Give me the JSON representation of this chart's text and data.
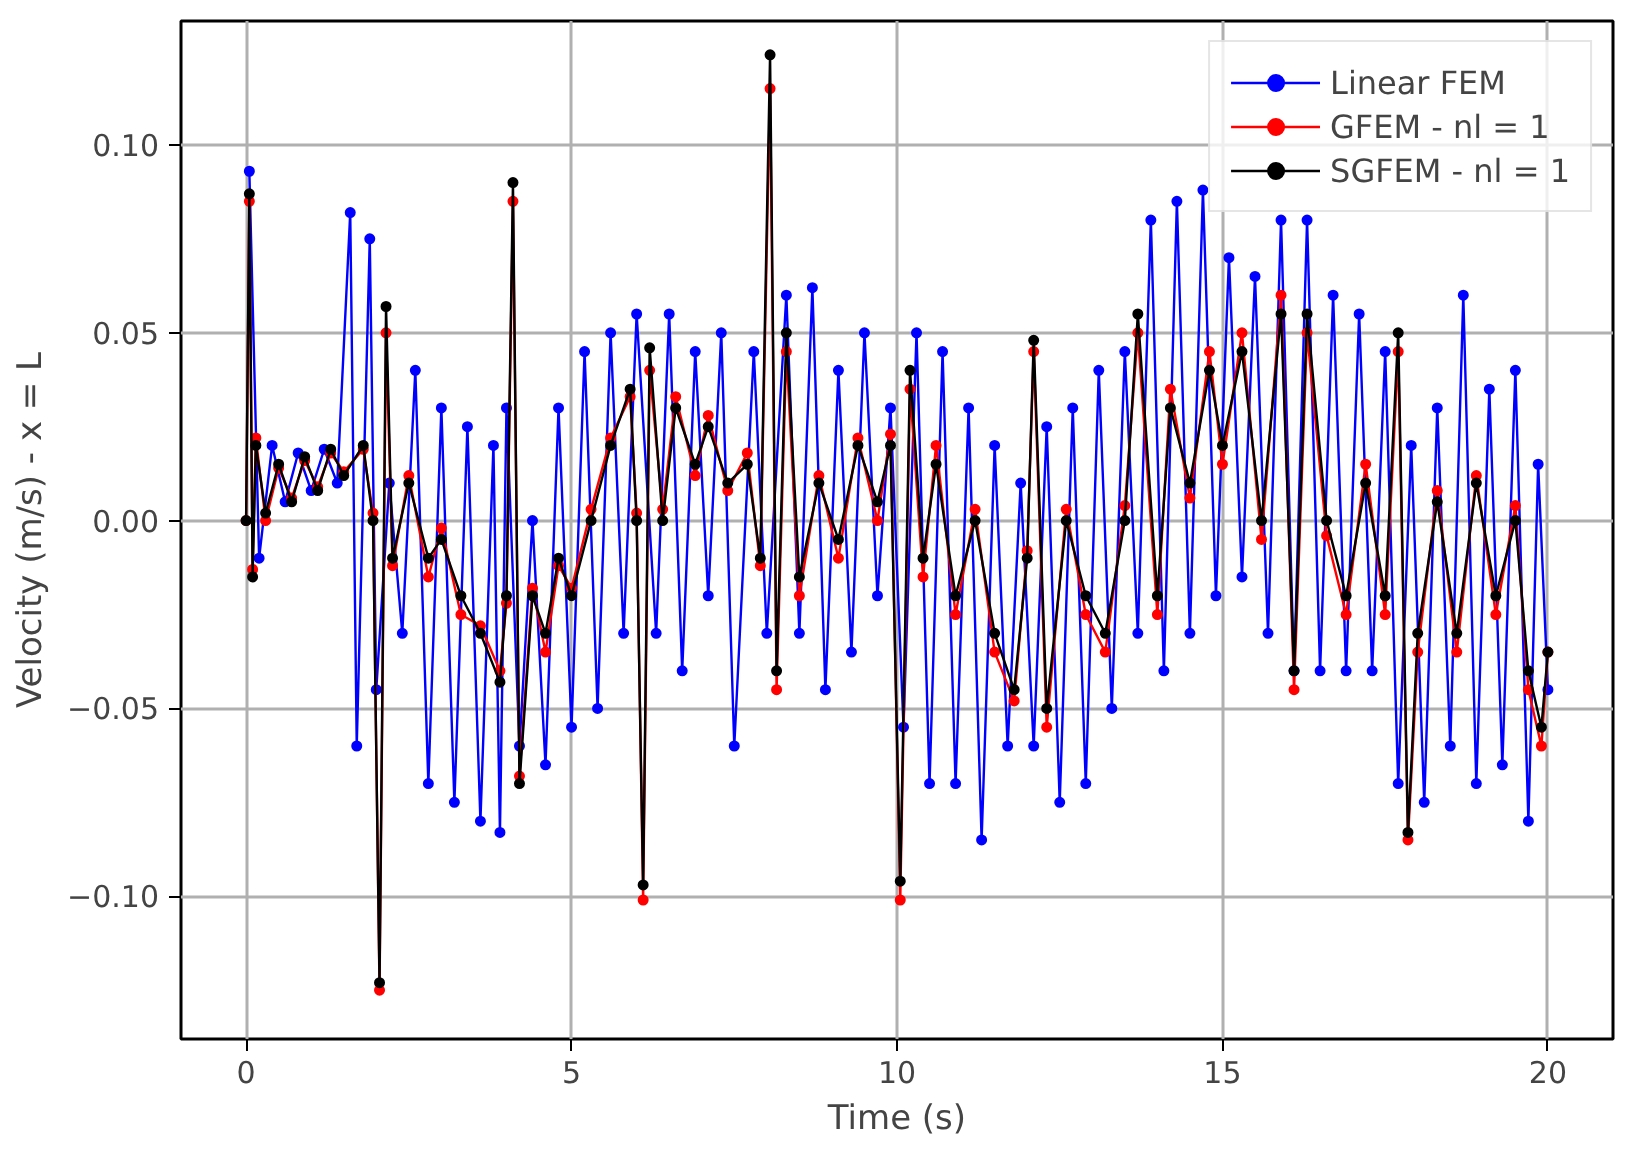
{
  "chart_data": {
    "type": "line",
    "xlabel": "Time (s)",
    "ylabel": "Velocity (m/s) - x = L",
    "xlim": [
      -1.0,
      21.0
    ],
    "ylim": [
      -0.138,
      0.133
    ],
    "xticks": [
      0,
      5,
      10,
      15,
      20
    ],
    "yticks": [
      {
        "value": -0.1,
        "label": "−0.10"
      },
      {
        "value": -0.05,
        "label": "−0.05"
      },
      {
        "value": 0,
        "label": "0.00"
      },
      {
        "value": 0.05,
        "label": "0.05"
      },
      {
        "value": 0.1,
        "label": "0.10"
      }
    ],
    "grid": true,
    "legend": "top right",
    "marker": "circle",
    "line_style": "solid",
    "series": [
      {
        "name": "Linear FEM",
        "color": "#0000ff",
        "x": [
          0.05,
          0.2,
          0.4,
          0.6,
          0.8,
          1.0,
          1.2,
          1.4,
          1.6,
          1.7,
          1.9,
          2.0,
          2.2,
          2.4,
          2.6,
          2.8,
          3.0,
          3.2,
          3.4,
          3.6,
          3.8,
          3.9,
          4.0,
          4.2,
          4.4,
          4.6,
          4.8,
          5.0,
          5.2,
          5.4,
          5.6,
          5.8,
          6.0,
          6.3,
          6.5,
          6.7,
          6.9,
          7.1,
          7.3,
          7.5,
          7.8,
          8.0,
          8.3,
          8.5,
          8.7,
          8.9,
          9.1,
          9.3,
          9.5,
          9.7,
          9.9,
          10.1,
          10.3,
          10.5,
          10.7,
          10.9,
          11.1,
          11.3,
          11.5,
          11.7,
          11.9,
          12.1,
          12.3,
          12.5,
          12.7,
          12.9,
          13.1,
          13.3,
          13.5,
          13.7,
          13.9,
          14.1,
          14.3,
          14.5,
          14.7,
          14.9,
          15.1,
          15.3,
          15.5,
          15.7,
          15.9,
          16.1,
          16.3,
          16.5,
          16.7,
          16.9,
          17.1,
          17.3,
          17.5,
          17.7,
          17.9,
          18.1,
          18.3,
          18.5,
          18.7,
          18.9,
          19.1,
          19.3,
          19.5,
          19.7,
          19.85,
          20.0
        ],
        "values": [
          0.093,
          -0.01,
          0.02,
          0.005,
          0.018,
          0.008,
          0.019,
          0.01,
          0.082,
          -0.06,
          0.075,
          -0.045,
          0.01,
          -0.03,
          0.04,
          -0.07,
          0.03,
          -0.075,
          0.025,
          -0.08,
          0.02,
          -0.083,
          0.03,
          -0.06,
          0.0,
          -0.065,
          0.03,
          -0.055,
          0.045,
          -0.05,
          0.05,
          -0.03,
          0.055,
          -0.03,
          0.055,
          -0.04,
          0.045,
          -0.02,
          0.05,
          -0.06,
          0.045,
          -0.03,
          0.06,
          -0.03,
          0.062,
          -0.045,
          0.04,
          -0.035,
          0.05,
          -0.02,
          0.03,
          -0.055,
          0.05,
          -0.07,
          0.045,
          -0.07,
          0.03,
          -0.085,
          0.02,
          -0.06,
          0.01,
          -0.06,
          0.025,
          -0.075,
          0.03,
          -0.07,
          0.04,
          -0.05,
          0.045,
          -0.03,
          0.08,
          -0.04,
          0.085,
          -0.03,
          0.088,
          -0.02,
          0.07,
          -0.015,
          0.065,
          -0.03,
          0.08,
          -0.04,
          0.08,
          -0.04,
          0.06,
          -0.04,
          0.055,
          -0.04,
          0.045,
          -0.07,
          0.02,
          -0.075,
          0.03,
          -0.06,
          0.06,
          -0.07,
          0.035,
          -0.065,
          0.04,
          -0.08,
          0.015,
          -0.045
        ]
      },
      {
        "name": "GFEM - nl = 1",
        "color": "#ff0000",
        "x": [
          0,
          0.05,
          0.1,
          0.15,
          0.3,
          0.5,
          0.7,
          0.9,
          1.1,
          1.3,
          1.5,
          1.8,
          1.95,
          2.05,
          2.15,
          2.25,
          2.5,
          2.8,
          3.0,
          3.3,
          3.6,
          3.9,
          4.0,
          4.1,
          4.2,
          4.4,
          4.6,
          4.8,
          5.0,
          5.3,
          5.6,
          5.9,
          6.0,
          6.1,
          6.2,
          6.4,
          6.6,
          6.9,
          7.1,
          7.4,
          7.7,
          7.9,
          8.05,
          8.15,
          8.3,
          8.5,
          8.8,
          9.1,
          9.4,
          9.7,
          9.9,
          10.05,
          10.2,
          10.4,
          10.6,
          10.9,
          11.2,
          11.5,
          11.8,
          12.0,
          12.1,
          12.3,
          12.6,
          12.9,
          13.2,
          13.5,
          13.7,
          14.0,
          14.2,
          14.5,
          14.8,
          15.0,
          15.3,
          15.6,
          15.9,
          16.1,
          16.3,
          16.6,
          16.9,
          17.2,
          17.5,
          17.7,
          17.85,
          18.0,
          18.3,
          18.6,
          18.9,
          19.2,
          19.5,
          19.7,
          19.9,
          20.0
        ],
        "values": [
          0.0,
          0.085,
          -0.013,
          0.022,
          0.0,
          0.014,
          0.006,
          0.016,
          0.009,
          0.018,
          0.013,
          0.019,
          0.002,
          -0.125,
          0.05,
          -0.012,
          0.012,
          -0.015,
          -0.002,
          -0.025,
          -0.028,
          -0.04,
          -0.022,
          0.085,
          -0.068,
          -0.018,
          -0.035,
          -0.012,
          -0.018,
          0.003,
          0.022,
          0.033,
          0.002,
          -0.101,
          0.04,
          0.003,
          0.033,
          0.012,
          0.028,
          0.008,
          0.018,
          -0.012,
          0.115,
          -0.045,
          0.045,
          -0.02,
          0.012,
          -0.01,
          0.022,
          0.0,
          0.023,
          -0.101,
          0.035,
          -0.015,
          0.02,
          -0.025,
          0.003,
          -0.035,
          -0.048,
          -0.008,
          0.045,
          -0.055,
          0.003,
          -0.025,
          -0.035,
          0.004,
          0.05,
          -0.025,
          0.035,
          0.006,
          0.045,
          0.015,
          0.05,
          -0.005,
          0.06,
          -0.045,
          0.05,
          -0.004,
          -0.025,
          0.015,
          -0.025,
          0.045,
          -0.085,
          -0.035,
          0.008,
          -0.035,
          0.012,
          -0.025,
          0.004,
          -0.045,
          -0.06,
          -0.035
        ]
      },
      {
        "name": "SGFEM - nl = 1",
        "color": "#000000",
        "x": [
          0,
          0.05,
          0.1,
          0.15,
          0.3,
          0.5,
          0.7,
          0.9,
          1.1,
          1.3,
          1.5,
          1.8,
          1.95,
          2.05,
          2.15,
          2.25,
          2.5,
          2.8,
          3.0,
          3.3,
          3.6,
          3.9,
          4.0,
          4.1,
          4.2,
          4.4,
          4.6,
          4.8,
          5.0,
          5.3,
          5.6,
          5.9,
          6.0,
          6.1,
          6.2,
          6.4,
          6.6,
          6.9,
          7.1,
          7.4,
          7.7,
          7.9,
          8.05,
          8.15,
          8.3,
          8.5,
          8.8,
          9.1,
          9.4,
          9.7,
          9.9,
          10.05,
          10.2,
          10.4,
          10.6,
          10.9,
          11.2,
          11.5,
          11.8,
          12.0,
          12.1,
          12.3,
          12.6,
          12.9,
          13.2,
          13.5,
          13.7,
          14.0,
          14.2,
          14.5,
          14.8,
          15.0,
          15.3,
          15.6,
          15.9,
          16.1,
          16.3,
          16.6,
          16.9,
          17.2,
          17.5,
          17.7,
          17.85,
          18.0,
          18.3,
          18.6,
          18.9,
          19.2,
          19.5,
          19.7,
          19.9,
          20.0
        ],
        "values": [
          0.0,
          0.087,
          -0.015,
          0.02,
          0.002,
          0.015,
          0.005,
          0.017,
          0.008,
          0.019,
          0.012,
          0.02,
          0.0,
          -0.123,
          0.057,
          -0.01,
          0.01,
          -0.01,
          -0.005,
          -0.02,
          -0.03,
          -0.043,
          -0.02,
          0.09,
          -0.07,
          -0.02,
          -0.03,
          -0.01,
          -0.02,
          0.0,
          0.02,
          0.035,
          0.0,
          -0.097,
          0.046,
          0.0,
          0.03,
          0.015,
          0.025,
          0.01,
          0.015,
          -0.01,
          0.124,
          -0.04,
          0.05,
          -0.015,
          0.01,
          -0.005,
          0.02,
          0.005,
          0.02,
          -0.096,
          0.04,
          -0.01,
          0.015,
          -0.02,
          0.0,
          -0.03,
          -0.045,
          -0.01,
          0.048,
          -0.05,
          0.0,
          -0.02,
          -0.03,
          0.0,
          0.055,
          -0.02,
          0.03,
          0.01,
          0.04,
          0.02,
          0.045,
          0.0,
          0.055,
          -0.04,
          0.055,
          0.0,
          -0.02,
          0.01,
          -0.02,
          0.05,
          -0.083,
          -0.03,
          0.005,
          -0.03,
          0.01,
          -0.02,
          0.0,
          -0.04,
          -0.055,
          -0.035
        ]
      }
    ]
  }
}
